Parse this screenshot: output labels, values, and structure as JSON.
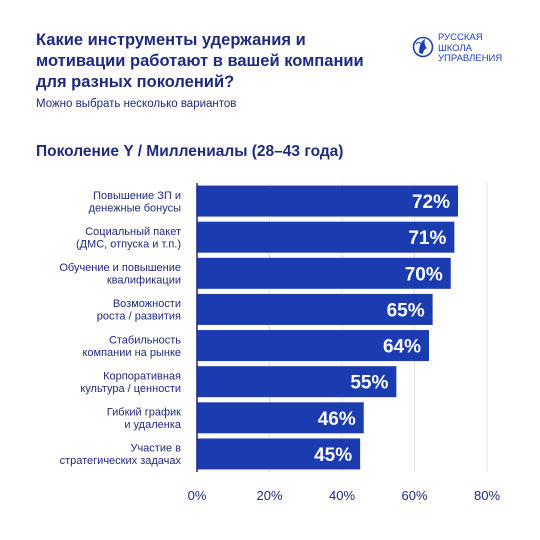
{
  "header": {
    "title_lines": [
      "Какие инструменты удержания и",
      "мотивации работают в вашей компании",
      "для разных поколений?"
    ],
    "subtitle": "Можно выбрать несколько вариантов"
  },
  "logo": {
    "lines": [
      "РУССКАЯ",
      "ШКОЛА",
      "УПРАВЛЕНИЯ"
    ]
  },
  "colors": {
    "bar": "#1b3bb0",
    "text": "#1f2a7a",
    "grid": "#e3e3ea",
    "axis": "#1f2a7a",
    "accent": "#1e3fb4"
  },
  "chart_data": {
    "type": "bar",
    "orientation": "horizontal",
    "title": "Поколение Y / Миллениалы (28–43 года)",
    "categories": [
      [
        "Повышение ЗП и",
        "денежные бонусы"
      ],
      [
        "Социальный пакет",
        "(ДМС, отпуска и т.п.)"
      ],
      [
        "Обучение и повышение",
        "квалификации"
      ],
      [
        "Возможности",
        "роста / развития"
      ],
      [
        "Стабильность",
        "компании на рынке"
      ],
      [
        "Корпоративная",
        "культура / ценности"
      ],
      [
        "Гибкий график",
        "и удаленка"
      ],
      [
        "Участие в",
        "стратегических задачах"
      ]
    ],
    "values": [
      72,
      71,
      70,
      65,
      64,
      55,
      46,
      45
    ],
    "value_labels": [
      "72%",
      "71%",
      "70%",
      "65%",
      "64%",
      "55%",
      "46%",
      "45%"
    ],
    "xlim": [
      0,
      80
    ],
    "xticks": [
      0,
      20,
      40,
      60,
      80
    ],
    "xtick_labels": [
      "0%",
      "20%",
      "40%",
      "60%",
      "80%"
    ],
    "grid": true
  }
}
